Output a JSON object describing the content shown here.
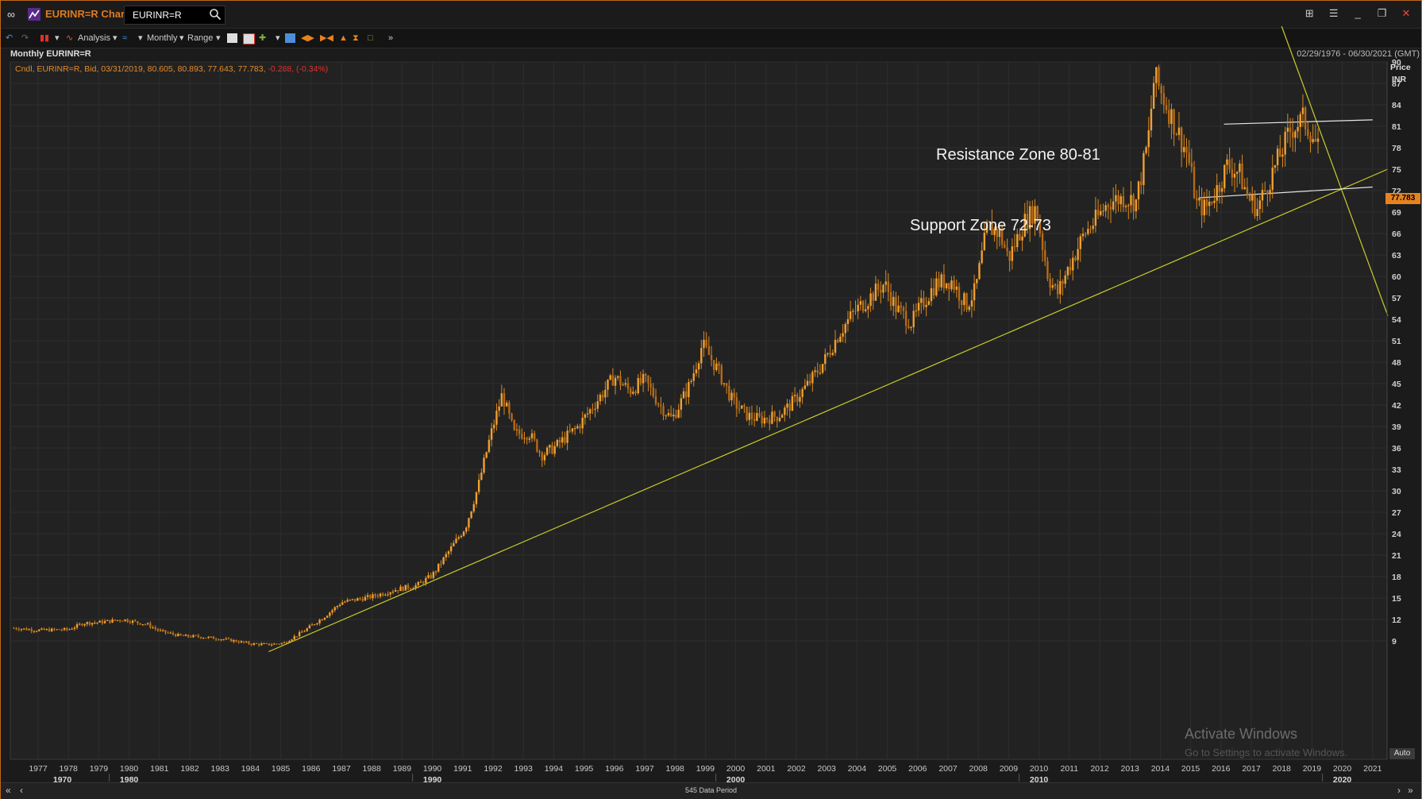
{
  "window": {
    "title": "EURINR=R Chart",
    "symbol": "EURINR=R"
  },
  "toolbar": {
    "analysis_label": "Analysis",
    "interval_label": "Monthly",
    "range_label": "Range"
  },
  "chart_header": {
    "name": "Monthly EURINR=R",
    "date_range": "02/29/1976 - 06/30/2021 (GMT)"
  },
  "legend": {
    "text": "Cndl, EURINR=R, Bid, 03/31/2019, 80.605, 80.893, 77.643, 77.783,",
    "change": "-0.288, (-0.34%)"
  },
  "price_axis": {
    "title": "Price",
    "currency": "INR",
    "last_price_tag": "77.783",
    "auto_button": "Auto"
  },
  "annotations": {
    "resistance": "Resistance Zone 80-81",
    "support": "Support Zone 72-73"
  },
  "watermark": {
    "line1": "Activate Windows",
    "line2": "Go to Settings to activate Windows."
  },
  "scrollbar": {
    "data_period": "545 Data Period"
  },
  "colors": {
    "accent": "#e07a1e",
    "candle": "#f0a030",
    "trendline": "#c8cc2a",
    "zone_line": "#e6e6e6",
    "negative": "#e2302a"
  },
  "chart_data": {
    "type": "candlestick",
    "title": "Monthly EURINR=R",
    "ylabel": "Price INR",
    "xlabel": "",
    "ylim": [
      7.5,
      95
    ],
    "y_ticks": [
      9,
      12,
      15,
      18,
      21,
      24,
      27,
      30,
      33,
      36,
      39,
      42,
      45,
      48,
      51,
      54,
      57,
      60,
      63,
      66,
      69,
      72,
      75,
      78,
      81,
      84,
      87,
      90
    ],
    "x_year_labels": [
      "1977",
      "1978",
      "1979",
      "1980",
      "1981",
      "1982",
      "1983",
      "1984",
      "1985",
      "1986",
      "1987",
      "1988",
      "1989",
      "1990",
      "1991",
      "1992",
      "1993",
      "1994",
      "1995",
      "1996",
      "1997",
      "1998",
      "1999",
      "2000",
      "2001",
      "2002",
      "2003",
      "2004",
      "2005",
      "2006",
      "2007",
      "2008",
      "2009",
      "2010",
      "2011",
      "2012",
      "2013",
      "2014",
      "2015",
      "2016",
      "2017",
      "2018",
      "2019",
      "2020",
      "2021"
    ],
    "x_decade_labels": [
      "1970",
      "1980",
      "1990",
      "2000",
      "2010",
      "2020"
    ],
    "grid": true,
    "series": [
      {
        "points": [
          [
            1976.2,
            10.8
          ],
          [
            1977.0,
            10.5
          ],
          [
            1978.0,
            10.6
          ],
          [
            1978.5,
            11.5
          ],
          [
            1979.0,
            11.6
          ],
          [
            1979.8,
            12.0
          ],
          [
            1980.6,
            11.3
          ],
          [
            1981.0,
            10.4
          ],
          [
            1981.7,
            9.7
          ],
          [
            1982.3,
            9.6
          ],
          [
            1983.0,
            9.3
          ],
          [
            1983.5,
            9.0
          ],
          [
            1984.0,
            8.6
          ],
          [
            1984.6,
            8.5
          ],
          [
            1985.1,
            8.7
          ],
          [
            1985.8,
            10.5
          ],
          [
            1986.5,
            12.6
          ],
          [
            1987.0,
            14.4
          ],
          [
            1988.0,
            15.2
          ],
          [
            1988.8,
            16.2
          ],
          [
            1989.5,
            16.8
          ],
          [
            1990.0,
            18.2
          ],
          [
            1990.7,
            22.5
          ],
          [
            1991.1,
            25.0
          ],
          [
            1991.5,
            30.5
          ],
          [
            1991.9,
            37.5
          ],
          [
            1992.3,
            43.5
          ],
          [
            1992.7,
            38.0
          ],
          [
            1993.2,
            38.0
          ],
          [
            1993.6,
            35.0
          ],
          [
            1994.0,
            36.0
          ],
          [
            1994.8,
            39.0
          ],
          [
            1995.5,
            43.0
          ],
          [
            1996.0,
            46.0
          ],
          [
            1996.5,
            44.0
          ],
          [
            1997.0,
            45.5
          ],
          [
            1997.5,
            42.0
          ],
          [
            1997.9,
            40.0
          ],
          [
            1998.5,
            45.0
          ],
          [
            1998.9,
            50.5
          ],
          [
            1999.4,
            47.0
          ],
          [
            1999.9,
            42.5
          ],
          [
            2000.4,
            40.5
          ],
          [
            2000.8,
            40.0
          ],
          [
            2001.4,
            40.5
          ],
          [
            2001.8,
            42.0
          ],
          [
            2002.4,
            45.0
          ],
          [
            2002.9,
            48.0
          ],
          [
            2003.4,
            52.0
          ],
          [
            2003.9,
            55.0
          ],
          [
            2004.4,
            57.0
          ],
          [
            2004.9,
            59.0
          ],
          [
            2005.3,
            55.5
          ],
          [
            2005.8,
            53.5
          ],
          [
            2006.2,
            56.5
          ],
          [
            2006.6,
            59.0
          ],
          [
            2007.1,
            59.5
          ],
          [
            2007.6,
            56.0
          ],
          [
            2007.9,
            58.0
          ],
          [
            2008.3,
            67.0
          ],
          [
            2008.7,
            66.0
          ],
          [
            2009.0,
            62.5
          ],
          [
            2009.5,
            67.5
          ],
          [
            2009.9,
            69.5
          ],
          [
            2010.3,
            60.0
          ],
          [
            2010.6,
            57.5
          ],
          [
            2011.0,
            61.5
          ],
          [
            2011.5,
            66.0
          ],
          [
            2011.9,
            68.0
          ],
          [
            2012.3,
            70.5
          ],
          [
            2012.8,
            71.0
          ],
          [
            2013.2,
            70.5
          ],
          [
            2013.6,
            79.0
          ],
          [
            2013.8,
            88.0
          ],
          [
            2014.2,
            84.0
          ],
          [
            2014.6,
            80.0
          ],
          [
            2014.9,
            77.0
          ],
          [
            2015.2,
            70.0
          ],
          [
            2015.5,
            69.5
          ],
          [
            2015.9,
            72.5
          ],
          [
            2016.2,
            75.5
          ],
          [
            2016.6,
            74.5
          ],
          [
            2016.9,
            71.0
          ],
          [
            2017.2,
            69.5
          ],
          [
            2017.5,
            72.5
          ],
          [
            2017.9,
            76.5
          ],
          [
            2018.3,
            80.5
          ],
          [
            2018.7,
            82.0
          ],
          [
            2019.0,
            80.0
          ],
          [
            2019.2,
            77.8
          ]
        ]
      }
    ]
  }
}
